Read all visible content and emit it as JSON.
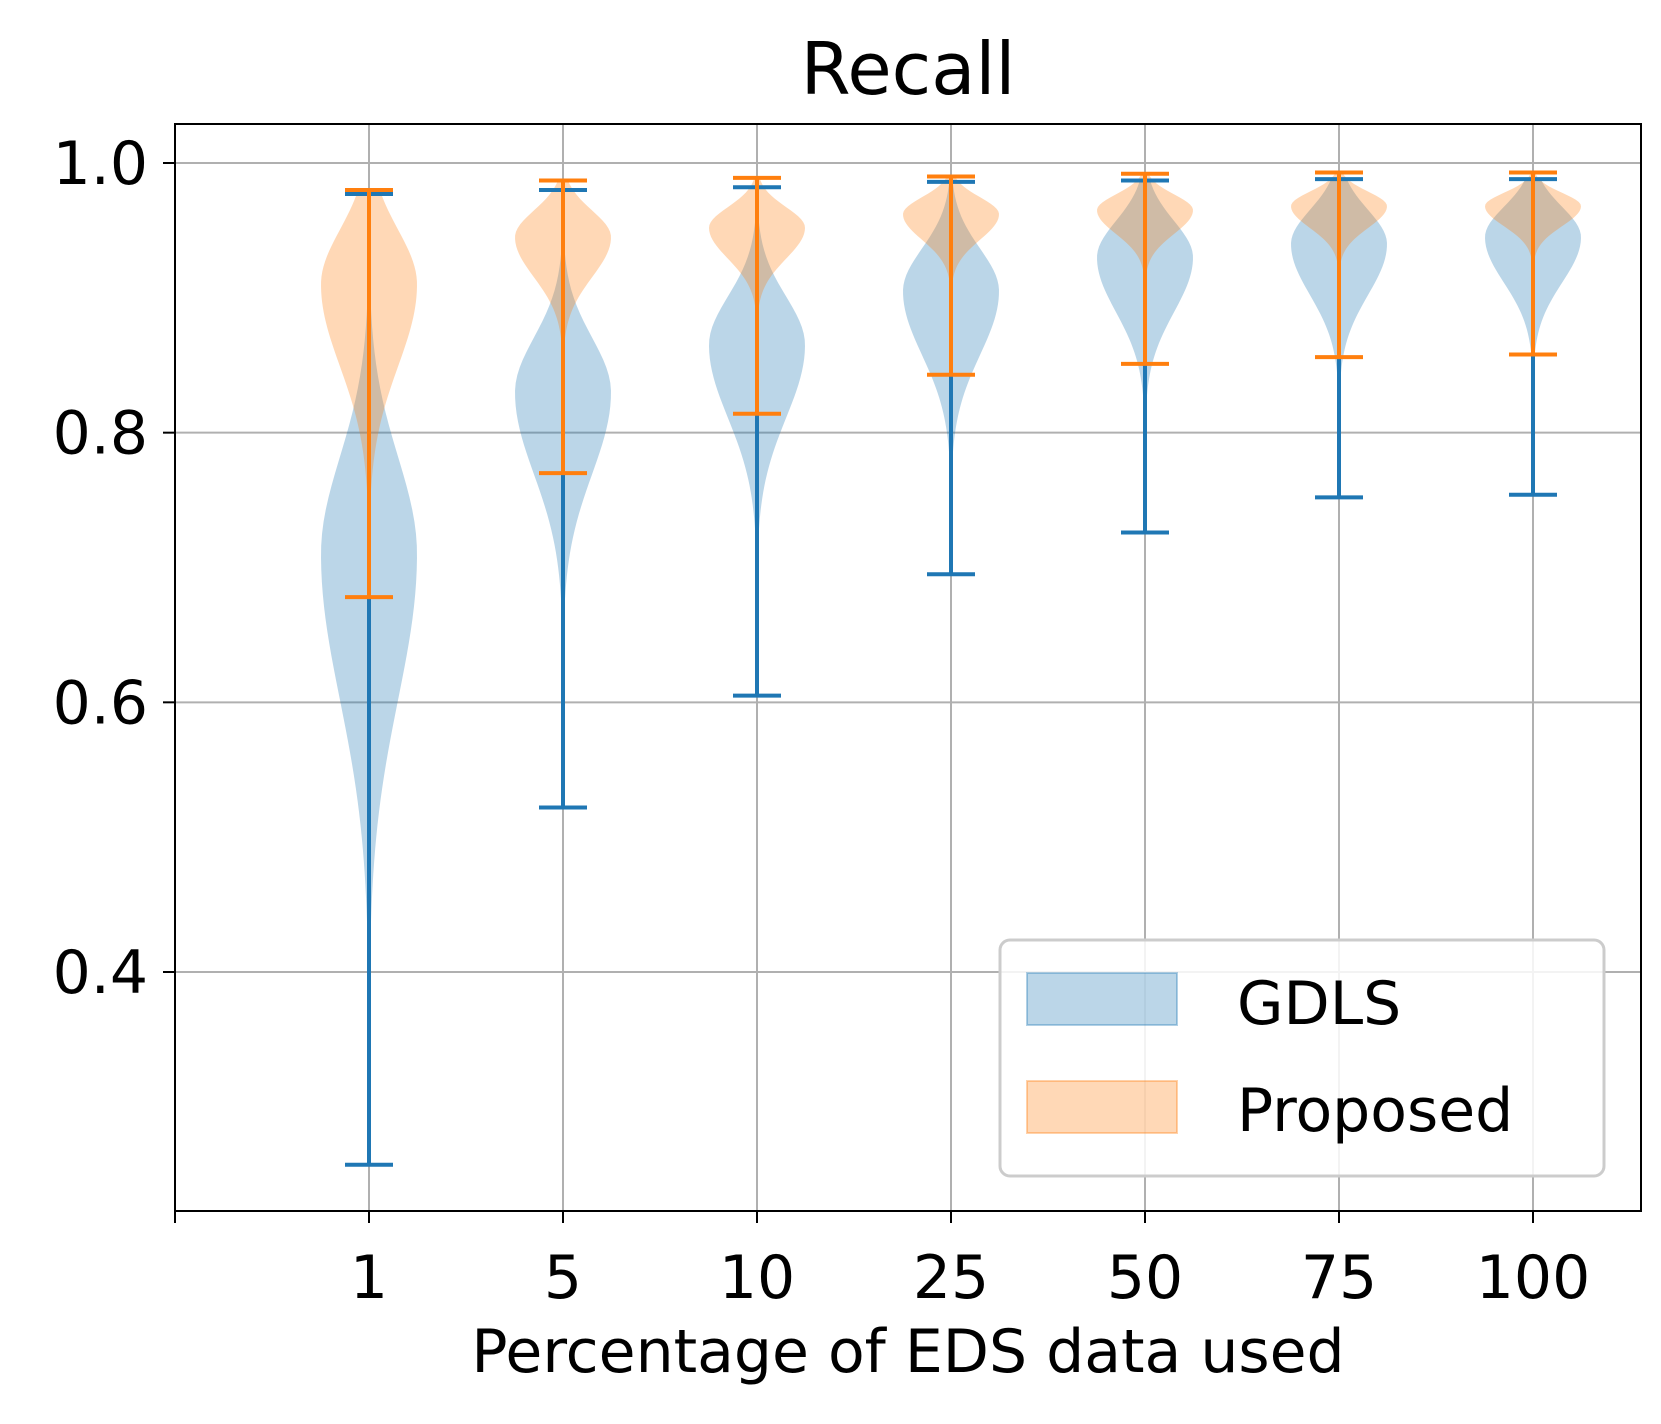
{
  "colors": {
    "gdls": "#1f77b4",
    "proposed": "#ff7f0e",
    "grid": "#b0b0b0",
    "axis": "#000000",
    "legend_border": "#cccccc"
  },
  "chart_data": {
    "type": "violin",
    "title": "Recall",
    "xlabel": "Percentage of EDS data used",
    "ylabel": "",
    "categories": [
      "1",
      "5",
      "10",
      "25",
      "50",
      "75",
      "100"
    ],
    "ylim": [
      0.22,
      1.03
    ],
    "yticks": [
      0.4,
      0.6,
      0.8,
      1.0
    ],
    "ytick_labels": [
      "0.4",
      "0.6",
      "0.8",
      "1.0"
    ],
    "grid": true,
    "legend": {
      "location": "lower right",
      "entries": [
        "GDLS",
        "Proposed"
      ]
    },
    "series": [
      {
        "name": "GDLS",
        "color": "#1f77b4",
        "min": [
          0.257,
          0.522,
          0.605,
          0.695,
          0.726,
          0.752,
          0.754
        ],
        "max": [
          0.977,
          0.98,
          0.982,
          0.986,
          0.987,
          0.988,
          0.988
        ],
        "mode": [
          0.71,
          0.83,
          0.865,
          0.905,
          0.93,
          0.94,
          0.945
        ],
        "spread": [
          0.08,
          0.045,
          0.04,
          0.035,
          0.03,
          0.028,
          0.025
        ]
      },
      {
        "name": "Proposed",
        "color": "#ff7f0e",
        "min": [
          0.678,
          0.77,
          0.814,
          0.843,
          0.851,
          0.856,
          0.858
        ],
        "max": [
          0.98,
          0.987,
          0.989,
          0.99,
          0.992,
          0.993,
          0.993
        ],
        "mode": [
          0.91,
          0.945,
          0.952,
          0.962,
          0.965,
          0.968,
          0.968
        ],
        "spread": [
          0.045,
          0.022,
          0.017,
          0.014,
          0.013,
          0.012,
          0.011
        ]
      }
    ]
  }
}
